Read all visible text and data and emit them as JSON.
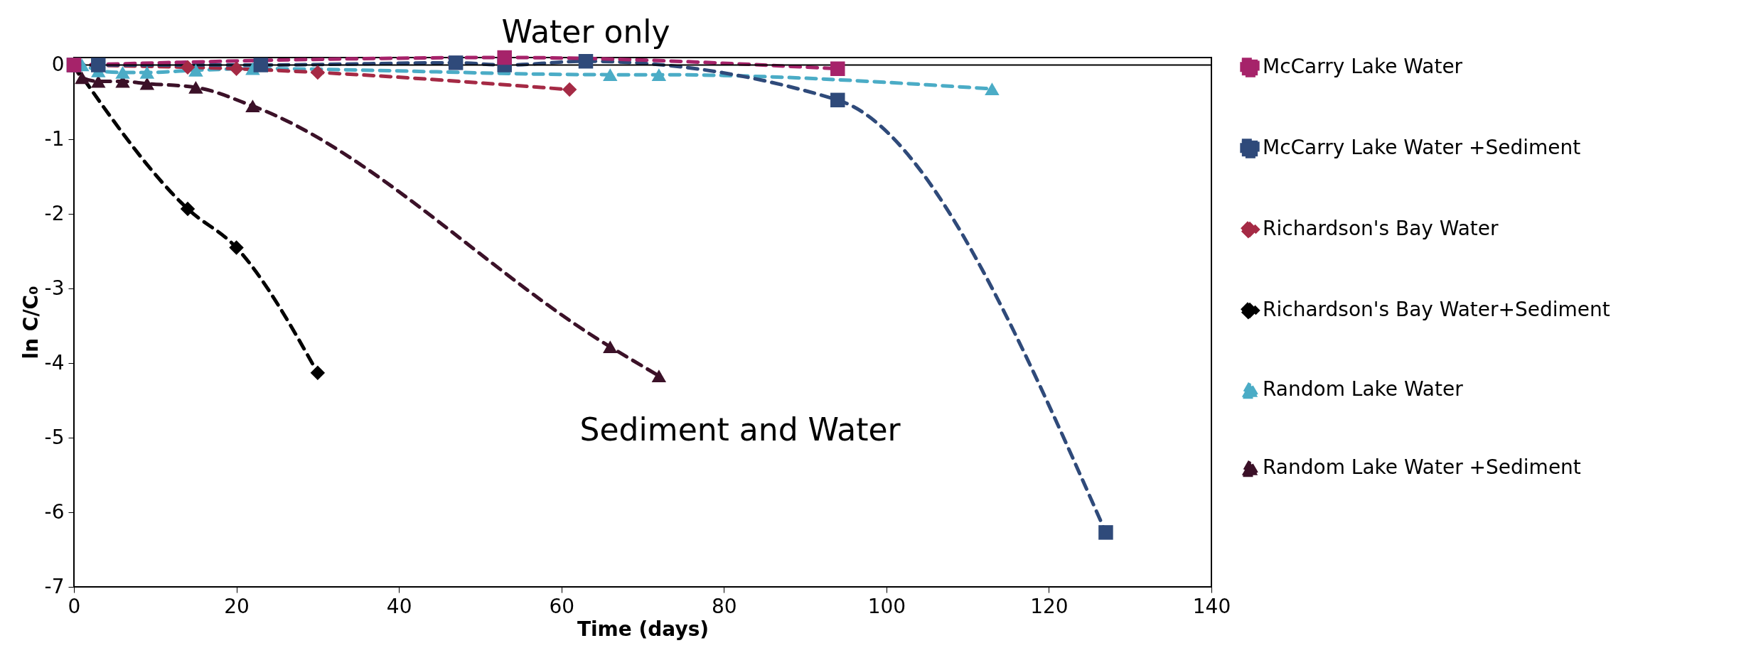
{
  "chart_data": {
    "type": "line",
    "xlabel": "Time (days)",
    "ylabel": "ln C/C₀",
    "annotations": [
      "Water only",
      "Sediment and Water"
    ],
    "xlim": [
      0,
      140
    ],
    "xticks": [
      0,
      20,
      40,
      60,
      80,
      100,
      120,
      140
    ],
    "ylim": [
      -7,
      0.1
    ],
    "yticks": [
      -7,
      -6,
      -5,
      -4,
      -3,
      -2,
      -1,
      0
    ],
    "ref_lines": [
      {
        "axis": "y",
        "value": 0,
        "color": "#000000"
      }
    ],
    "legend": "right",
    "line_style": "dashed",
    "series": [
      {
        "name": "McCarry Lake Water",
        "color": "#a6236a",
        "marker": "square",
        "x": [
          0,
          53,
          94
        ],
        "values": [
          0,
          0.1,
          -0.05
        ]
      },
      {
        "name": "McCarry Lake Water +Sediment",
        "color": "#2f4a7a",
        "marker": "square",
        "x": [
          0,
          3,
          23,
          47,
          53,
          63,
          94,
          127
        ],
        "values": [
          0,
          0,
          0,
          0.03,
          0,
          0.05,
          -0.47,
          -6.27
        ]
      },
      {
        "name": "Richardson's Bay Water",
        "color": "#a52a45",
        "marker": "diamond",
        "x": [
          0,
          14,
          20,
          30,
          61
        ],
        "values": [
          0,
          -0.03,
          -0.05,
          -0.1,
          -0.33
        ]
      },
      {
        "name": "Richardson's Bay Water+Sediment",
        "color": "#000000",
        "marker": "diamond",
        "x": [
          0,
          14,
          20,
          30
        ],
        "values": [
          0,
          -1.93,
          -2.45,
          -4.13
        ]
      },
      {
        "name": "Random Lake Water",
        "color": "#4bacc6",
        "marker": "triangle",
        "x": [
          0,
          1,
          3,
          6,
          9,
          15,
          22,
          66,
          72,
          113
        ],
        "values": [
          0,
          0,
          -0.08,
          -0.1,
          -0.1,
          -0.07,
          -0.05,
          -0.13,
          -0.13,
          -0.32
        ]
      },
      {
        "name": "Random Lake Water +Sediment",
        "color": "#3b1128",
        "marker": "triangle",
        "x": [
          0,
          1,
          3,
          6,
          9,
          15,
          22,
          66,
          72
        ],
        "values": [
          0,
          -0.17,
          -0.22,
          -0.22,
          -0.25,
          -0.3,
          -0.55,
          -3.78,
          -4.17
        ]
      }
    ]
  }
}
